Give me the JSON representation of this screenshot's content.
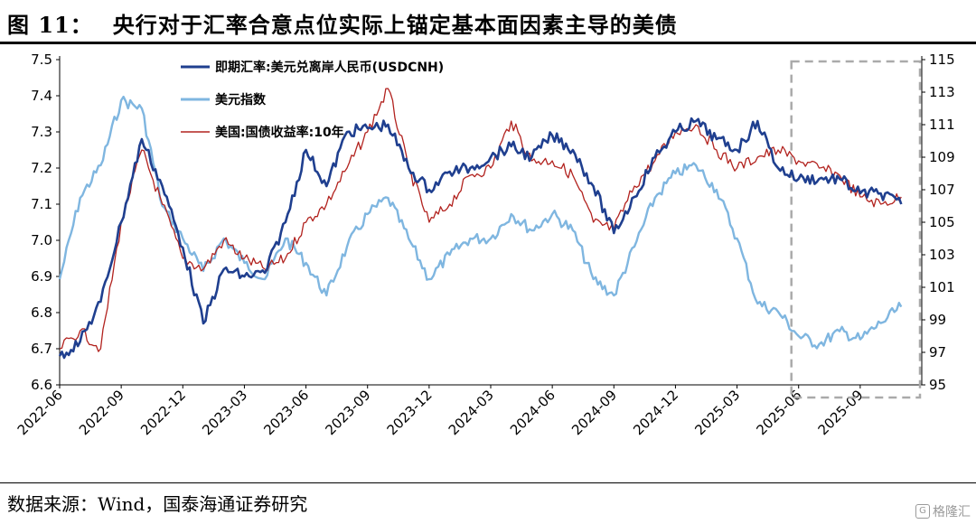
{
  "title": {
    "label": "图 11：",
    "text": "央行对于汇率合意点位实际上锚定基本面因素主导的美债"
  },
  "source": "数据来源：Wind，国泰海通证券研究",
  "watermark": {
    "glyph": "G",
    "text": "格隆汇"
  },
  "chart_data": {
    "type": "line",
    "x_ticks": [
      "2022-06",
      "2022-09",
      "2022-12",
      "2023-03",
      "2023-06",
      "2023-09",
      "2023-12",
      "2024-03",
      "2024-06",
      "2024-09",
      "2024-12",
      "2025-03",
      "2025-06",
      "2025-09"
    ],
    "y_left": {
      "ticks": [
        6.6,
        6.7,
        6.8,
        6.9,
        7.0,
        7.1,
        7.2,
        7.3,
        7.4,
        7.5
      ],
      "range": [
        6.6,
        7.5
      ]
    },
    "y_right": {
      "ticks": [
        95,
        97,
        99,
        101,
        103,
        105,
        107,
        109,
        111,
        113,
        115
      ],
      "range": [
        95,
        115
      ]
    },
    "legend": {
      "placement": "top-left"
    },
    "highlight_box": {
      "x_start": "2025-06",
      "x_end": "2025-12",
      "style": "dashed"
    },
    "series": [
      {
        "name": "即期汇率:美元兑离岸人民币(USDCNH)",
        "axis": "left",
        "color": "#1f3f8f",
        "points": [
          [
            "2022-06",
            6.68
          ],
          [
            "2022-07",
            6.72
          ],
          [
            "2022-08",
            6.83
          ],
          [
            "2022-09",
            7.05
          ],
          [
            "2022-10",
            7.28
          ],
          [
            "2022-11",
            7.15
          ],
          [
            "2022-12",
            6.98
          ],
          [
            "2023-01",
            6.77
          ],
          [
            "2023-02",
            6.92
          ],
          [
            "2023-03",
            6.9
          ],
          [
            "2023-04",
            6.91
          ],
          [
            "2023-05",
            7.05
          ],
          [
            "2023-06",
            7.25
          ],
          [
            "2023-07",
            7.15
          ],
          [
            "2023-08",
            7.3
          ],
          [
            "2023-09",
            7.31
          ],
          [
            "2023-10",
            7.32
          ],
          [
            "2023-11",
            7.2
          ],
          [
            "2023-12",
            7.14
          ],
          [
            "2024-01",
            7.19
          ],
          [
            "2024-02",
            7.2
          ],
          [
            "2024-03",
            7.23
          ],
          [
            "2024-04",
            7.26
          ],
          [
            "2024-05",
            7.23
          ],
          [
            "2024-06",
            7.29
          ],
          [
            "2024-07",
            7.25
          ],
          [
            "2024-08",
            7.15
          ],
          [
            "2024-09",
            7.02
          ],
          [
            "2024-10",
            7.12
          ],
          [
            "2024-11",
            7.23
          ],
          [
            "2024-12",
            7.3
          ],
          [
            "2025-01",
            7.33
          ],
          [
            "2025-02",
            7.28
          ],
          [
            "2025-03",
            7.25
          ],
          [
            "2025-04",
            7.33
          ],
          [
            "2025-05",
            7.2
          ],
          [
            "2025-06",
            7.17
          ],
          [
            "2025-07",
            7.17
          ],
          [
            "2025-08",
            7.17
          ],
          [
            "2025-09",
            7.13
          ],
          [
            "2025-10",
            7.13
          ],
          [
            "2025-11",
            7.1
          ]
        ]
      },
      {
        "name": "美元指数",
        "axis": "right",
        "color": "#7fb6e0",
        "points": [
          [
            "2022-06",
            101.5
          ],
          [
            "2022-07",
            106.5
          ],
          [
            "2022-08",
            108.5
          ],
          [
            "2022-09",
            112.5
          ],
          [
            "2022-10",
            112.0
          ],
          [
            "2022-11",
            106.0
          ],
          [
            "2022-12",
            104.0
          ],
          [
            "2023-01",
            102.0
          ],
          [
            "2023-02",
            104.0
          ],
          [
            "2023-03",
            102.5
          ],
          [
            "2023-04",
            101.5
          ],
          [
            "2023-05",
            104.0
          ],
          [
            "2023-06",
            102.5
          ],
          [
            "2023-07",
            100.5
          ],
          [
            "2023-08",
            103.5
          ],
          [
            "2023-09",
            105.5
          ],
          [
            "2023-10",
            106.5
          ],
          [
            "2023-11",
            104.0
          ],
          [
            "2023-12",
            101.5
          ],
          [
            "2024-01",
            103.0
          ],
          [
            "2024-02",
            104.0
          ],
          [
            "2024-03",
            104.0
          ],
          [
            "2024-04",
            105.5
          ],
          [
            "2024-05",
            104.5
          ],
          [
            "2024-06",
            105.5
          ],
          [
            "2024-07",
            104.5
          ],
          [
            "2024-08",
            101.5
          ],
          [
            "2024-09",
            100.5
          ],
          [
            "2024-10",
            103.5
          ],
          [
            "2024-11",
            106.5
          ],
          [
            "2024-12",
            108.0
          ],
          [
            "2025-01",
            108.5
          ],
          [
            "2025-02",
            107.0
          ],
          [
            "2025-03",
            104.0
          ],
          [
            "2025-04",
            100.0
          ],
          [
            "2025-05",
            99.5
          ],
          [
            "2025-06",
            98.0
          ],
          [
            "2025-07",
            97.5
          ],
          [
            "2025-08",
            98.3
          ],
          [
            "2025-09",
            97.8
          ],
          [
            "2025-10",
            98.8
          ],
          [
            "2025-11",
            99.8
          ]
        ]
      },
      {
        "name": "美国:国债收益率:10年",
        "axis": "left",
        "color": "#b2221e",
        "points": [
          [
            "2022-06",
            6.7
          ],
          [
            "2022-07",
            6.75
          ],
          [
            "2022-08",
            6.7
          ],
          [
            "2022-09",
            7.05
          ],
          [
            "2022-10",
            7.25
          ],
          [
            "2022-11",
            7.1
          ],
          [
            "2022-12",
            6.95
          ],
          [
            "2023-01",
            6.92
          ],
          [
            "2023-02",
            7.0
          ],
          [
            "2023-03",
            6.95
          ],
          [
            "2023-04",
            6.92
          ],
          [
            "2023-05",
            6.95
          ],
          [
            "2023-06",
            7.05
          ],
          [
            "2023-07",
            7.1
          ],
          [
            "2023-08",
            7.2
          ],
          [
            "2023-09",
            7.3
          ],
          [
            "2023-10",
            7.42
          ],
          [
            "2023-11",
            7.2
          ],
          [
            "2023-12",
            7.05
          ],
          [
            "2024-01",
            7.1
          ],
          [
            "2024-02",
            7.18
          ],
          [
            "2024-03",
            7.2
          ],
          [
            "2024-04",
            7.33
          ],
          [
            "2024-05",
            7.22
          ],
          [
            "2024-06",
            7.22
          ],
          [
            "2024-07",
            7.18
          ],
          [
            "2024-08",
            7.05
          ],
          [
            "2024-09",
            7.03
          ],
          [
            "2024-10",
            7.15
          ],
          [
            "2024-11",
            7.22
          ],
          [
            "2024-12",
            7.3
          ],
          [
            "2025-01",
            7.32
          ],
          [
            "2025-02",
            7.25
          ],
          [
            "2025-03",
            7.2
          ],
          [
            "2025-04",
            7.23
          ],
          [
            "2025-05",
            7.25
          ],
          [
            "2025-06",
            7.22
          ],
          [
            "2025-07",
            7.2
          ],
          [
            "2025-08",
            7.18
          ],
          [
            "2025-09",
            7.12
          ],
          [
            "2025-10",
            7.1
          ],
          [
            "2025-11",
            7.12
          ]
        ]
      }
    ]
  }
}
